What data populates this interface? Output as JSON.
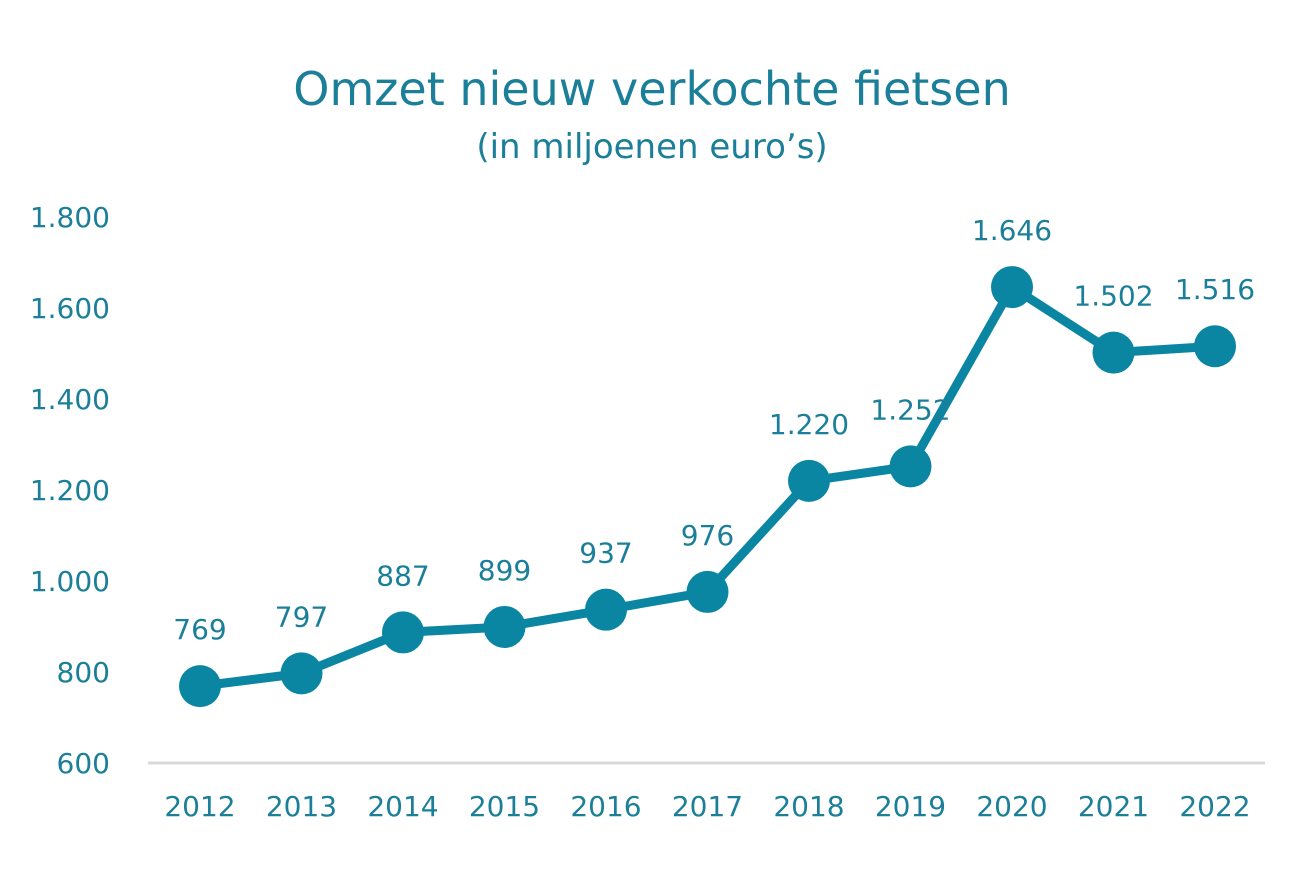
{
  "colors": {
    "accent": "#0a86a3",
    "text": "#1b7f99",
    "axis": "#d9d9d9"
  },
  "chart_data": {
    "type": "line",
    "title": "Omzet nieuw verkochte fietsen",
    "subtitle": "(in miljoenen euro’s)",
    "xlabel": "",
    "ylabel": "",
    "x": [
      "2012",
      "2013",
      "2014",
      "2015",
      "2016",
      "2017",
      "2018",
      "2019",
      "2020",
      "2021",
      "2022"
    ],
    "series": [
      {
        "values": [
          769,
          797,
          887,
          899,
          937,
          976,
          1220,
          1252,
          1646,
          1502,
          1516
        ],
        "data_labels": [
          "769",
          "797",
          "887",
          "899",
          "937",
          "976",
          "1.220",
          "1.252",
          "1.646",
          "1.502",
          "1.516"
        ]
      }
    ],
    "ylim": [
      600,
      1800
    ],
    "y_ticks": [
      600,
      800,
      1000,
      1200,
      1400,
      1600,
      1800
    ],
    "y_tick_labels": [
      "600",
      "800",
      "1.000",
      "1.200",
      "1.400",
      "1.600",
      "1.800"
    ],
    "grid": false,
    "legend": "none"
  }
}
